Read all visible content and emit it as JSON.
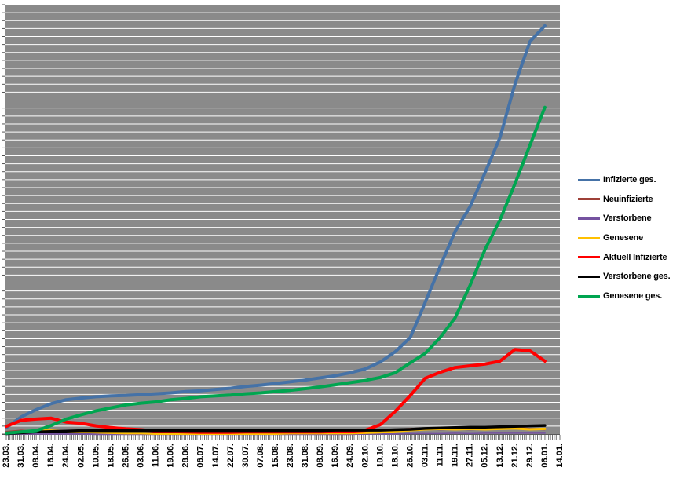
{
  "window": {
    "background": "#ffffff"
  },
  "chart_data": {
    "type": "line",
    "title": "",
    "xlabel": "",
    "ylabel": "",
    "y_axis": {
      "labels_visible": false,
      "gridline_count": 54,
      "gridline_color": "#ffffff",
      "note": "no numeric y-axis labels visible; series values below are expressed as percent of plot height (0-100)"
    },
    "x_axis": {
      "tick_count": 297,
      "label_every_n_ticks": 8,
      "labels_rotated_degrees": -90,
      "tick_color": "#404040"
    },
    "plot": {
      "background": "#8a8a8a",
      "border_color": "#ffffff",
      "axis_line_color": "#595959"
    },
    "legend_position": "right",
    "ylim": [
      0,
      100
    ],
    "categories": [
      "23.03.",
      "31.03.",
      "08.04.",
      "16.04.",
      "24.04.",
      "02.05.",
      "10.05.",
      "18.05.",
      "26.05.",
      "03.06.",
      "11.06.",
      "19.06.",
      "28.06.",
      "06.07.",
      "14.07.",
      "22.07.",
      "30.07.",
      "07.08.",
      "15.08.",
      "23.08.",
      "31.08.",
      "08.09.",
      "16.09.",
      "24.09.",
      "02.10.",
      "10.10.",
      "18.10.",
      "26.10.",
      "03.11.",
      "11.11.",
      "19.11.",
      "27.11.",
      "05.12.",
      "13.12.",
      "21.12.",
      "29.12.",
      "06.01.",
      "14.01."
    ],
    "series": [
      {
        "name": "Infizierte ges.",
        "color": "#4572A7",
        "stroke_width": 4,
        "values": [
          1.5,
          4.0,
          5.7,
          7.1,
          8.0,
          8.4,
          8.7,
          8.9,
          9.0,
          9.2,
          9.4,
          9.6,
          9.9,
          10.1,
          10.4,
          10.7,
          11.1,
          11.4,
          11.8,
          12.2,
          12.6,
          13.1,
          13.6,
          14.3,
          15.2,
          16.8,
          19.2,
          22.5,
          30.7,
          39.1,
          47.2,
          53.0,
          60.9,
          69.1,
          81.5,
          91.4,
          95.1,
          null
        ]
      },
      {
        "name": "Neuinfizierte",
        "color": "#9E4038",
        "stroke_width": 2.5,
        "values": [
          0.5,
          0.8,
          0.6,
          0.5,
          0.3,
          0.3,
          0.2,
          0.2,
          0.1,
          0.1,
          0.1,
          0.1,
          0.1,
          0.1,
          0.1,
          0.1,
          0.2,
          0.2,
          0.2,
          0.2,
          0.2,
          0.2,
          0.2,
          0.3,
          0.4,
          0.7,
          1.0,
          1.2,
          1.3,
          1.1,
          1.2,
          1.1,
          1.2,
          1.3,
          1.4,
          1.2,
          1.1,
          null
        ]
      },
      {
        "name": "Verstorbene",
        "color": "#7552A0",
        "stroke_width": 2.5,
        "values": [
          0.0,
          0.1,
          0.1,
          0.1,
          0.1,
          0.1,
          0.0,
          0.0,
          0.0,
          0.0,
          0.0,
          0.0,
          0.0,
          0.0,
          0.0,
          0.0,
          0.0,
          0.0,
          0.0,
          0.0,
          0.0,
          0.0,
          0.0,
          0.0,
          0.1,
          0.1,
          0.1,
          0.2,
          0.2,
          0.2,
          0.3,
          0.2,
          0.3,
          0.3,
          0.3,
          0.3,
          0.3,
          null
        ]
      },
      {
        "name": "Genesene",
        "color": "#FFC000",
        "stroke_width": 3,
        "values": [
          0.1,
          0.5,
          0.8,
          0.8,
          0.6,
          0.5,
          0.4,
          0.3,
          0.2,
          0.2,
          0.1,
          0.1,
          0.1,
          0.1,
          0.1,
          0.1,
          0.1,
          0.1,
          0.1,
          0.2,
          0.2,
          0.2,
          0.2,
          0.2,
          0.3,
          0.4,
          0.7,
          0.9,
          1.1,
          1.2,
          1.1,
          1.2,
          1.1,
          1.2,
          1.3,
          1.1,
          1.2,
          null
        ]
      },
      {
        "name": "Aktuell Infizierte",
        "color": "#FF0000",
        "stroke_width": 4,
        "values": [
          1.8,
          3.2,
          3.5,
          3.7,
          2.8,
          2.5,
          1.9,
          1.5,
          1.2,
          1.0,
          0.7,
          0.6,
          0.5,
          0.4,
          0.4,
          0.4,
          0.5,
          0.5,
          0.5,
          0.5,
          0.5,
          0.5,
          0.6,
          0.7,
          0.9,
          2.2,
          5.3,
          9.0,
          13.0,
          14.4,
          15.5,
          15.9,
          16.3,
          17.0,
          19.7,
          19.4,
          17.0,
          null
        ]
      },
      {
        "name": "Verstorbene ges.",
        "color": "#000000",
        "stroke_width": 3.5,
        "values": [
          0.1,
          0.3,
          0.5,
          0.6,
          0.7,
          0.8,
          0.8,
          0.8,
          0.8,
          0.8,
          0.8,
          0.8,
          0.8,
          0.8,
          0.8,
          0.8,
          0.8,
          0.8,
          0.8,
          0.8,
          0.8,
          0.8,
          0.9,
          0.9,
          0.9,
          0.9,
          1.0,
          1.1,
          1.3,
          1.4,
          1.5,
          1.6,
          1.6,
          1.7,
          1.8,
          1.9,
          2.0,
          null
        ]
      },
      {
        "name": "Genesene ges.",
        "color": "#00A550",
        "stroke_width": 4,
        "values": [
          0.2,
          0.5,
          0.8,
          2.0,
          3.5,
          4.5,
          5.4,
          6.1,
          6.8,
          7.2,
          7.5,
          8.0,
          8.3,
          8.7,
          8.9,
          9.1,
          9.4,
          9.6,
          9.9,
          10.2,
          10.6,
          11.0,
          11.5,
          12.0,
          12.5,
          13.2,
          14.3,
          16.6,
          18.8,
          22.5,
          27.1,
          34.7,
          43.0,
          49.9,
          58.3,
          67.3,
          76.1,
          null
        ]
      }
    ]
  }
}
